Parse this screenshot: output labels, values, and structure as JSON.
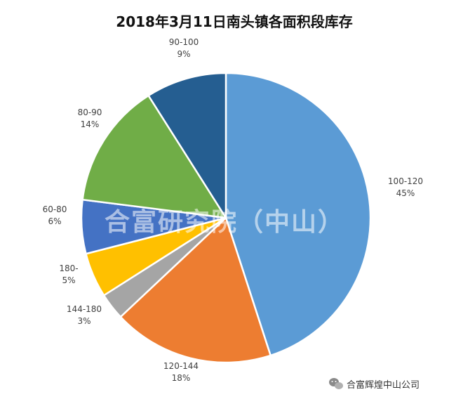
{
  "chart_data": {
    "type": "pie",
    "title": "2018年3月11日南头镇各面积段库存",
    "slices": [
      {
        "label": "100-120",
        "percent_text": "45%",
        "value": 45,
        "color": "#5b9bd5"
      },
      {
        "label": "120-144",
        "percent_text": "18%",
        "value": 18,
        "color": "#ed7d31"
      },
      {
        "label": "144-180",
        "percent_text": "3%",
        "value": 3,
        "color": "#a5a5a5"
      },
      {
        "label": "180-",
        "percent_text": "5%",
        "value": 5,
        "color": "#ffc000"
      },
      {
        "label": "60-80",
        "percent_text": "6%",
        "value": 6,
        "color": "#4472c4"
      },
      {
        "label": "80-90",
        "percent_text": "14%",
        "value": 14,
        "color": "#70ad47"
      },
      {
        "label": "90-100",
        "percent_text": "9%",
        "value": 9,
        "color": "#255e91"
      }
    ],
    "start": "12 o'clock",
    "direction": "clockwise",
    "legend": "none"
  },
  "watermark": "合富研究院（中山）",
  "brand": {
    "name": "合富辉煌中山公司",
    "icon": "wechat-icon"
  }
}
